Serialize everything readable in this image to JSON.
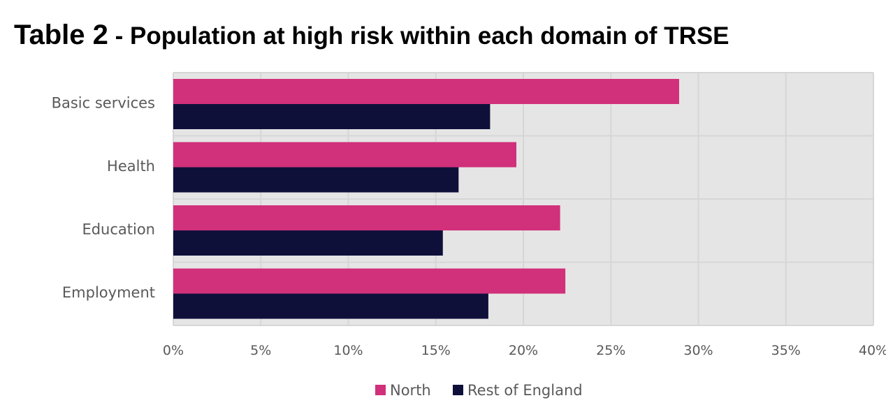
{
  "title_prefix": "Table 2",
  "title_rest": " - Population at high risk within each domain of TRSE",
  "colors": {
    "North": "#D1307B",
    "Rest of England": "#0E103A",
    "plot_bg": "#E6E5E5",
    "grid": "#D6D6D6"
  },
  "chart_data": {
    "type": "bar",
    "orientation": "horizontal",
    "title": "Table 2 - Population at high risk within each domain of TRSE",
    "categories": [
      "Basic services",
      "Health",
      "Education",
      "Employment"
    ],
    "series": [
      {
        "name": "North",
        "values": [
          28.9,
          19.6,
          22.1,
          22.4
        ]
      },
      {
        "name": "Rest of England",
        "values": [
          18.1,
          16.3,
          15.4,
          18.0
        ]
      }
    ],
    "xlim": [
      0,
      40
    ],
    "xticks": [
      0,
      5,
      10,
      15,
      20,
      25,
      30,
      35,
      40
    ],
    "xtick_labels": [
      "0%",
      "5%",
      "10%",
      "15%",
      "20%",
      "25%",
      "30%",
      "35%",
      "40%"
    ],
    "xlabel": "",
    "ylabel": "",
    "grid": true,
    "legend_position": "bottom"
  }
}
